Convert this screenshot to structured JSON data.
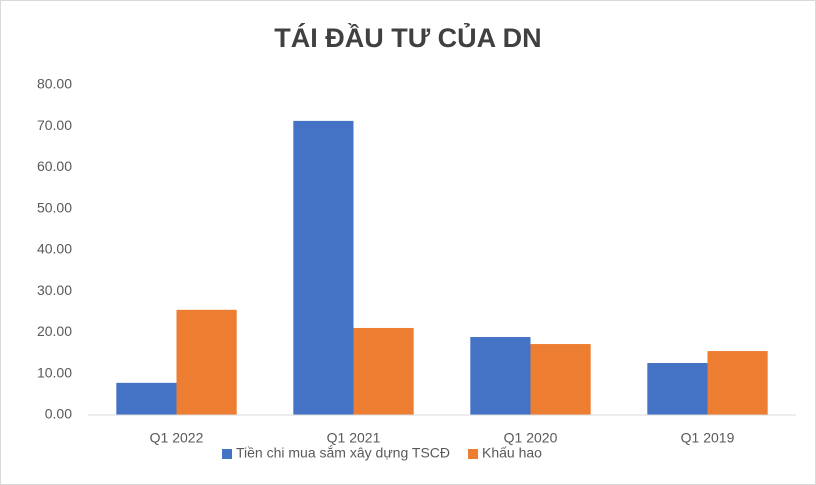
{
  "chart_data": {
    "type": "bar",
    "title": "TÁI ĐẦU TƯ CỦA DN",
    "categories": [
      "Q1 2022",
      "Q1 2021",
      "Q1 2020",
      "Q1 2019"
    ],
    "series": [
      {
        "name": "Tiền chi mua sắm xây dựng TSCĐ",
        "color": "#4472c4",
        "values": [
          7.8,
          71.3,
          18.9,
          12.6
        ]
      },
      {
        "name": "Khấu hao",
        "color": "#ed7d31",
        "values": [
          25.5,
          21.1,
          17.2,
          15.5
        ]
      }
    ],
    "ylim": [
      0,
      80
    ],
    "yticks": [
      {
        "value": 0,
        "label": "0.00"
      },
      {
        "value": 10,
        "label": "10.00"
      },
      {
        "value": 20,
        "label": "20.00"
      },
      {
        "value": 30,
        "label": "30.00"
      },
      {
        "value": 40,
        "label": "40.00"
      },
      {
        "value": 50,
        "label": "50.00"
      },
      {
        "value": 60,
        "label": "60.00"
      },
      {
        "value": 70,
        "label": "70.00"
      },
      {
        "value": 80,
        "label": "80.00"
      }
    ],
    "grid": false,
    "legend": "bottom"
  }
}
